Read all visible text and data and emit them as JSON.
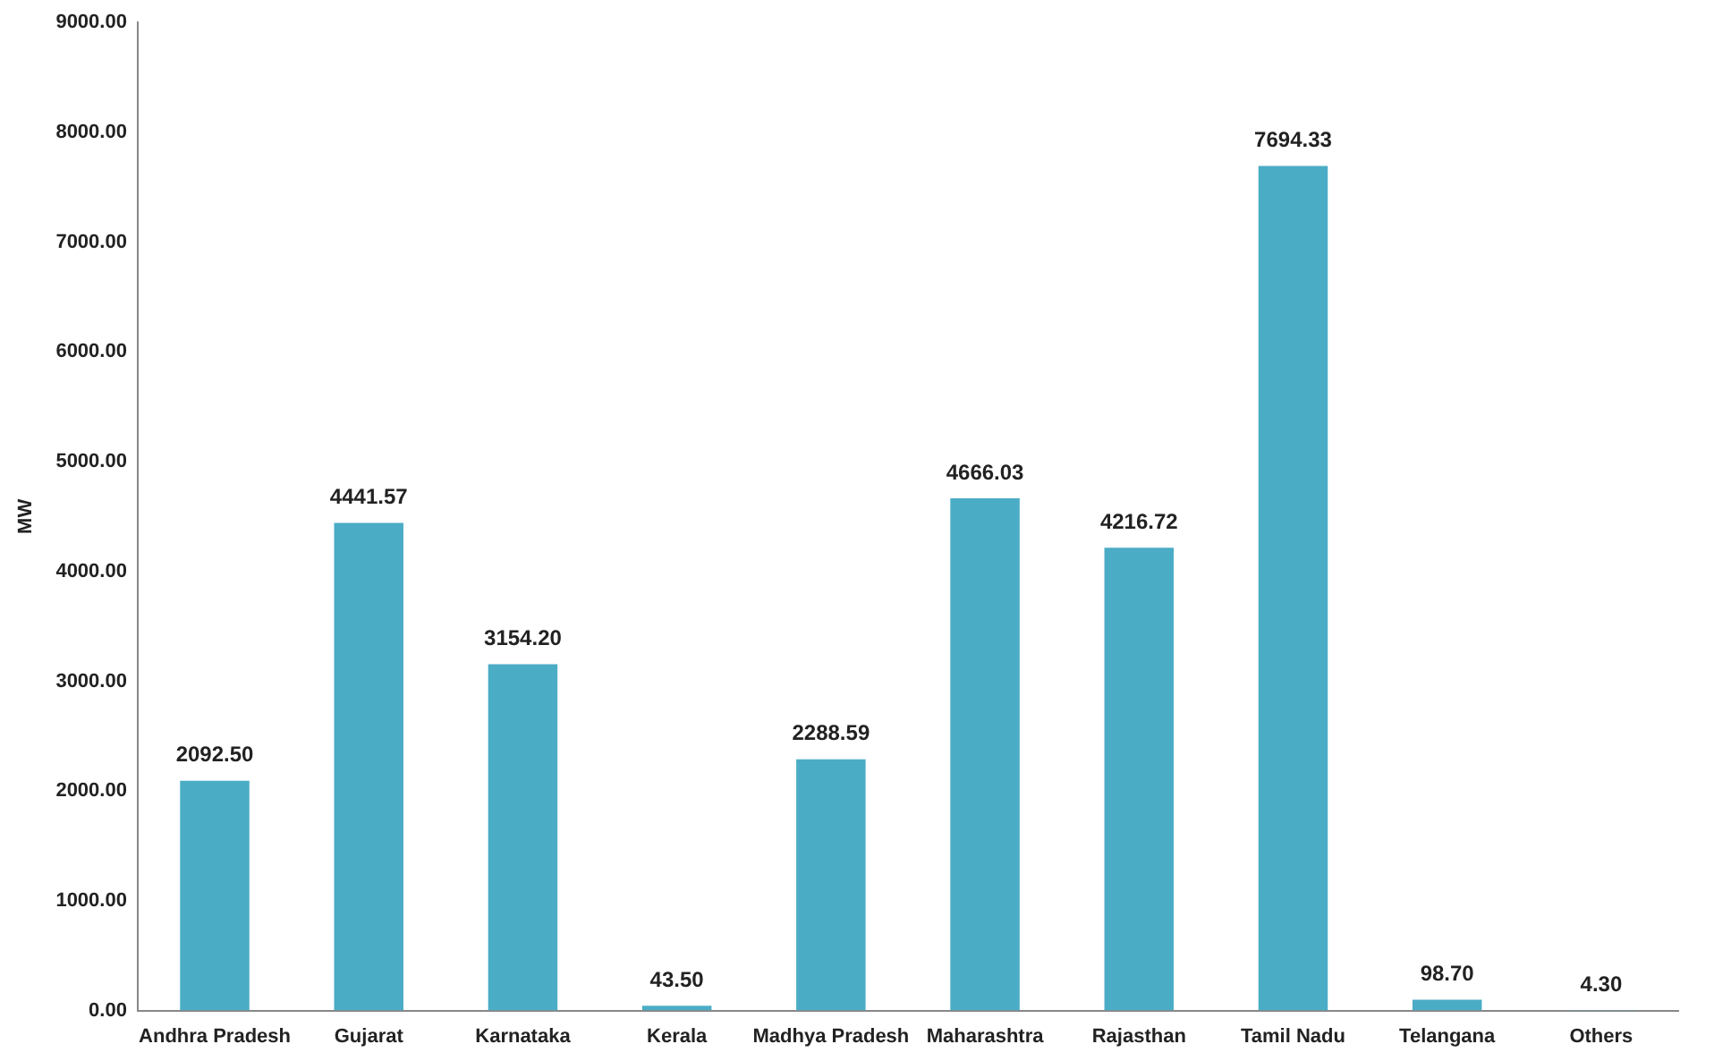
{
  "chart_data": {
    "type": "bar",
    "ylabel": "MW",
    "categories": [
      "Andhra Pradesh",
      "Gujarat",
      "Karnataka",
      "Kerala",
      "Madhya Pradesh",
      "Maharashtra",
      "Rajasthan",
      "Tamil Nadu",
      "Telangana",
      "Others"
    ],
    "values": [
      2092.5,
      4441.57,
      3154.2,
      43.5,
      2288.59,
      4666.03,
      4216.72,
      7694.33,
      98.7,
      4.3
    ],
    "value_labels": [
      "2092.50",
      "4441.57",
      "3154.20",
      "43.50",
      "2288.59",
      "4666.03",
      "4216.72",
      "7694.33",
      "98.70",
      "4.30"
    ],
    "color": "#4bacc6",
    "ylim": [
      0,
      9000
    ],
    "yticks": [
      {
        "value": 0,
        "label": "0.00"
      },
      {
        "value": 1000,
        "label": "1000.00"
      },
      {
        "value": 2000,
        "label": "2000.00"
      },
      {
        "value": 3000,
        "label": "3000.00"
      },
      {
        "value": 4000,
        "label": "4000.00"
      },
      {
        "value": 5000,
        "label": "5000.00"
      },
      {
        "value": 6000,
        "label": "6000.00"
      },
      {
        "value": 7000,
        "label": "7000.00"
      },
      {
        "value": 8000,
        "label": "8000.00"
      },
      {
        "value": 9000,
        "label": "9000.00"
      }
    ],
    "grid": false,
    "legend": false
  }
}
